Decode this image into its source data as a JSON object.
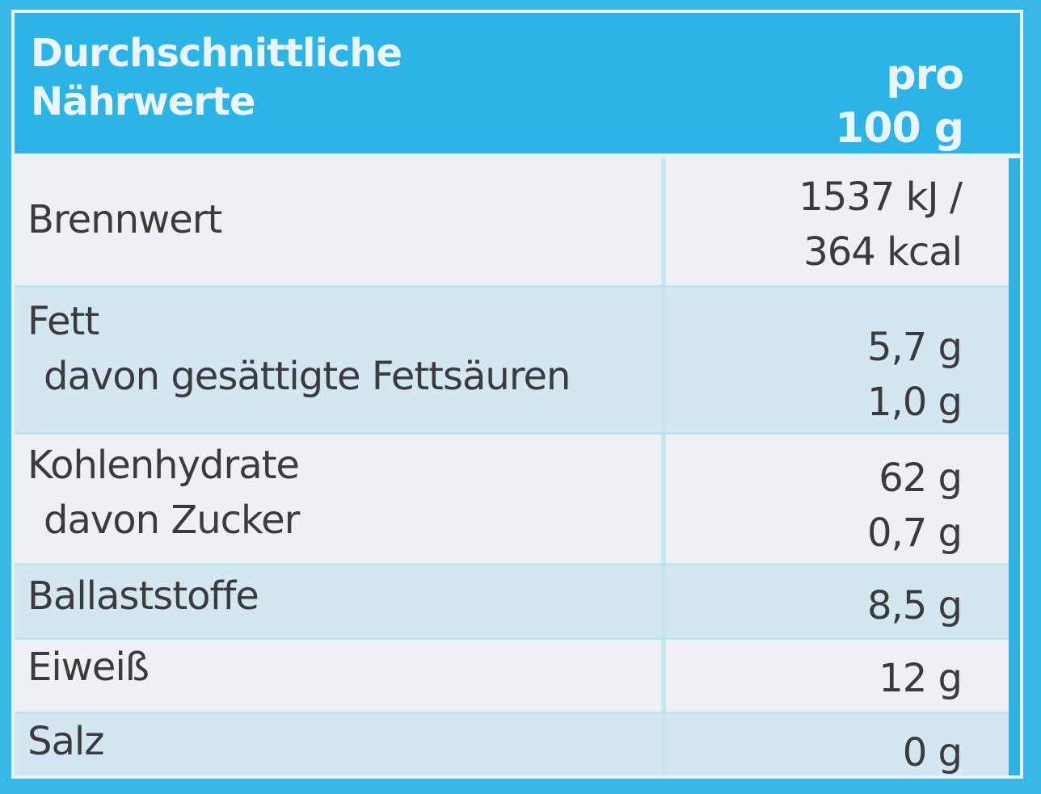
{
  "header": {
    "title_line1": "Durchschnittliche",
    "title_line2": "Nährwerte",
    "unit_line1": "pro",
    "unit_line2": "100 g"
  },
  "rows": [
    {
      "name": "Brennwert",
      "value_line1": "1537 kJ /",
      "value_line2": "364 kcal"
    },
    {
      "name": "Fett",
      "value": "5,7 g",
      "sub_name": "davon gesättigte Fettsäuren",
      "sub_value": "1,0 g"
    },
    {
      "name": "Kohlenhydrate",
      "value": "62 g",
      "sub_name": "davon Zucker",
      "sub_value": "0,7 g"
    },
    {
      "name": "Ballaststoffe",
      "value": "8,5 g"
    },
    {
      "name": "Eiweiß",
      "value": "12 g"
    },
    {
      "name": "Salz",
      "value": "0 g"
    }
  ],
  "colors": {
    "header_bg": "#2db4e6",
    "header_text": "#e9f5fb",
    "row_light": "#eef0f4",
    "row_blue": "#d4e7f1",
    "text": "#3b3b3e"
  }
}
